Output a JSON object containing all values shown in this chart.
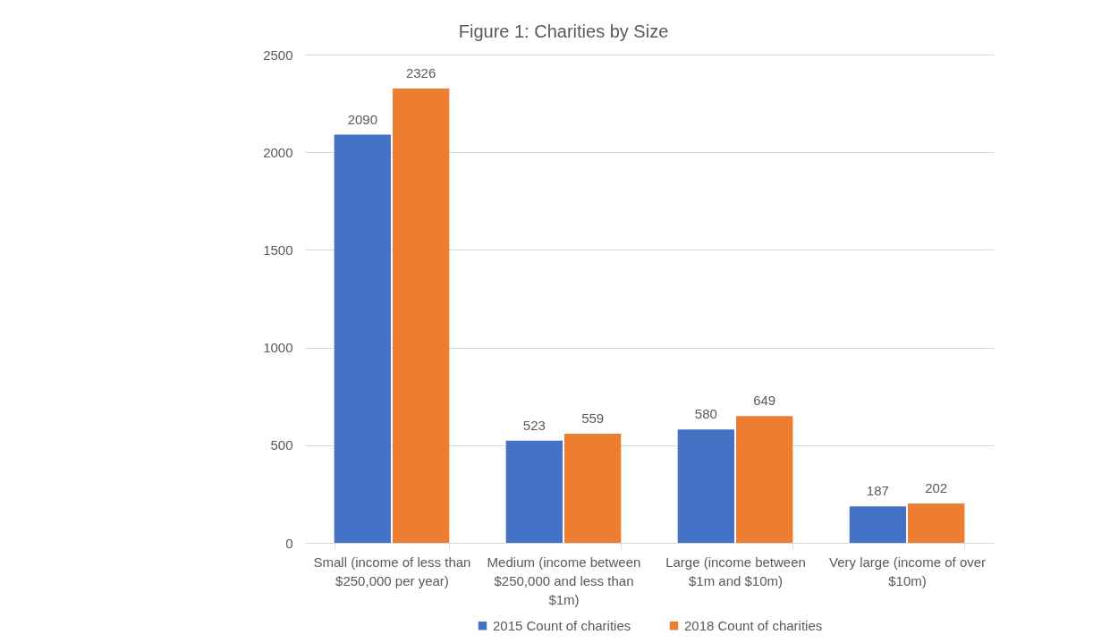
{
  "chart_data": {
    "type": "bar",
    "title": "Figure 1: Charities by Size",
    "categories": [
      "Small (income of less than $250,000 per year)",
      "Medium (income between $250,000 and less than $1m)",
      "Large (income between $1m and $10m)",
      "Very large (income of over $10m)"
    ],
    "series": [
      {
        "name": "2015 Count of charities",
        "color": "#4472c4",
        "values": [
          2090,
          523,
          580,
          187
        ]
      },
      {
        "name": "2018 Count of charities",
        "color": "#ed7d31",
        "values": [
          2326,
          559,
          649,
          202
        ]
      }
    ],
    "ylim": [
      0,
      2500
    ],
    "yticks": [
      0,
      500,
      1000,
      1500,
      2000,
      2500
    ],
    "grid": "y",
    "legend": "bottom",
    "data_labels": true
  }
}
